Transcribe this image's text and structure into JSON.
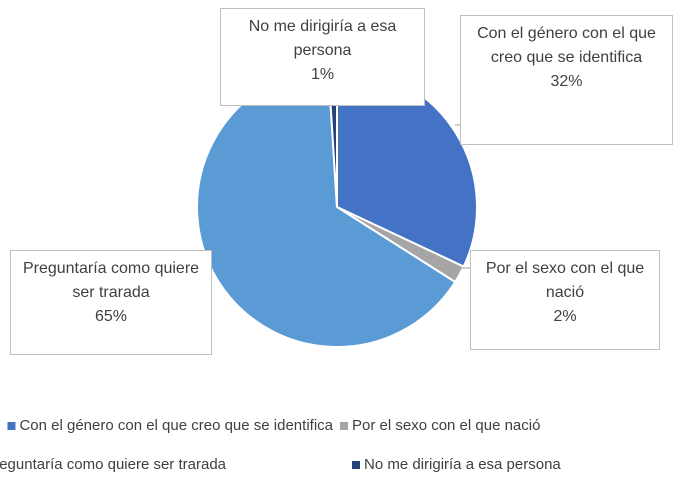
{
  "chart_data": {
    "type": "pie",
    "categories": [
      "Con el género con el que  creo que se identifica",
      "Por el sexo con el que nació",
      "Preguntaría como quiere ser trarada",
      "No me dirigiría a esa persona"
    ],
    "values": [
      32,
      2,
      65,
      1
    ],
    "value_labels": [
      "32%",
      "2%",
      "65%",
      "1%"
    ],
    "colors": [
      "#4472c4",
      "#a5a5a5",
      "#5b9bd5",
      "#264478"
    ],
    "legend": "bottom"
  }
}
